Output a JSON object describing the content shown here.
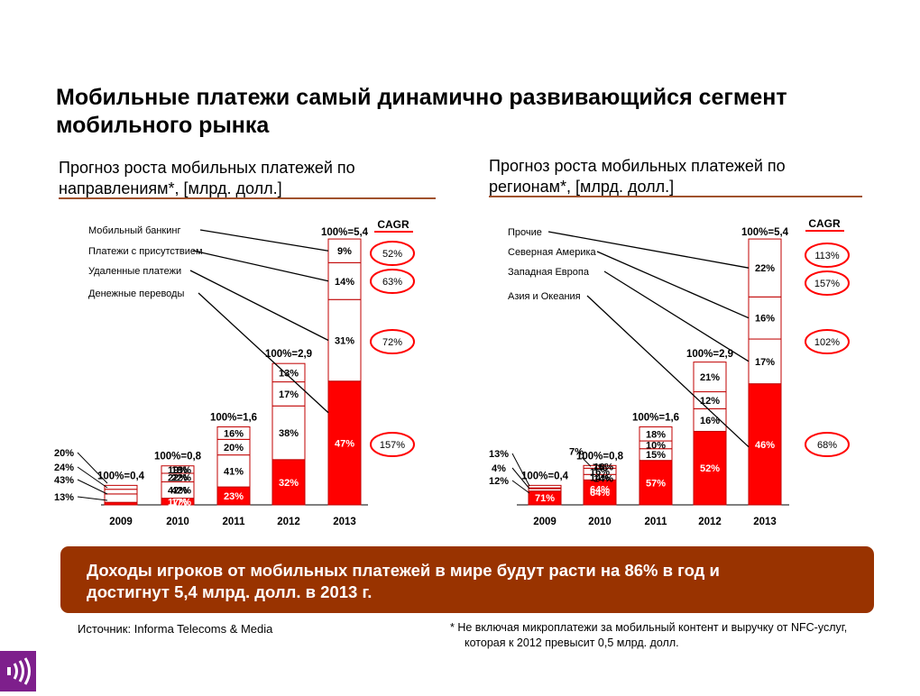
{
  "slide": {
    "title_line1": "Мобильные платежи самый динамично развивающийся сегмент",
    "title_line2": "мобильного рынка",
    "left_subtitle_line1": "Прогноз роста мобильных платежей по",
    "left_subtitle_line2": "направлениям*, [млрд. долл.]",
    "right_subtitle_line1": "Прогноз роста мобильных платежей по",
    "right_subtitle_line2": "регионам*, [млрд. долл.]",
    "banner_line1": "Доходы игроков от мобильных платежей в мире будут расти на 86% в год и",
    "banner_line2": "достигнут 5,4 млрд. долл. в 2013 г.",
    "source": "Источник: Informa Telecoms & Media",
    "footnote_line1": "* Не включая микроплатежи за мобильный контент и выручку от NFC-услуг,",
    "footnote_line2": "которая к 2012 превысит 0,5 млрд. долл.",
    "accent_color": "#ff0000",
    "banner_color": "#993300",
    "rule_color": "#a0522d",
    "logo_color": "#7e1f8c"
  },
  "chart_data": [
    {
      "type": "bar",
      "stacked": "100%",
      "categories": [
        "2009",
        "2010",
        "2011",
        "2012",
        "2013"
      ],
      "totals": [
        0.4,
        0.8,
        1.6,
        2.9,
        5.4
      ],
      "total_labels": [
        "100%=0,4",
        "100%=0,8",
        "100%=1,6",
        "100%=2,9",
        "100%=5,4"
      ],
      "series": [
        {
          "name": "Денежные переводы",
          "values": [
            13,
            17,
            23,
            32,
            47
          ],
          "labels": [
            "13%",
            "17%",
            "23%",
            "32%",
            "47%"
          ],
          "cagr": "157%",
          "color": "#ff0000"
        },
        {
          "name": "Удаленные платежи",
          "values": [
            43,
            42,
            41,
            38,
            31
          ],
          "labels": [
            "43%",
            "42%",
            "41%",
            "38%",
            "31%"
          ],
          "cagr": "72%",
          "color": "#ffffff"
        },
        {
          "name": "Платежи с присутствием",
          "values": [
            24,
            22,
            20,
            17,
            14
          ],
          "labels": [
            "24%",
            "22%",
            "20%",
            "17%",
            "14%"
          ],
          "cagr": "63%",
          "color": "#ffffff"
        },
        {
          "name": "Мобильный банкинг",
          "values": [
            20,
            19,
            16,
            13,
            9
          ],
          "labels": [
            "20%",
            "19%",
            "16%",
            "13%",
            "9%"
          ],
          "cagr": "52%",
          "color": "#ffffff"
        }
      ],
      "cagr_header": "CAGR",
      "legend_placement": "top-left"
    },
    {
      "type": "bar",
      "stacked": "100%",
      "categories": [
        "2009",
        "2010",
        "2011",
        "2012",
        "2013"
      ],
      "totals": [
        0.4,
        0.8,
        1.6,
        2.9,
        5.4
      ],
      "total_labels": [
        "100%=0,4",
        "100%=0,8",
        "100%=1,6",
        "100%=2,9",
        "100%=5,4"
      ],
      "series": [
        {
          "name": "Азия и Океания",
          "values": [
            71,
            64,
            57,
            52,
            46
          ],
          "labels": [
            "71%",
            "64%",
            "57%",
            "52%",
            "46%"
          ],
          "cagr": "68%",
          "color": "#ff0000"
        },
        {
          "name": "Западная Европа",
          "values": [
            12,
            14,
            15,
            16,
            17
          ],
          "labels": [
            "12%",
            "14%",
            "15%",
            "16%",
            "17%"
          ],
          "cagr": "102%",
          "color": "#ffffff"
        },
        {
          "name": "Северная Америка",
          "values": [
            4,
            16,
            10,
            12,
            16
          ],
          "labels": [
            "4%",
            "16%",
            "10%",
            "12%",
            "16%"
          ],
          "cagr": "157%",
          "color": "#ffffff"
        },
        {
          "name": "Прочие",
          "values": [
            13,
            7,
            18,
            21,
            22
          ],
          "labels": [
            "13%",
            "7%",
            "18%",
            "21%",
            "22%"
          ],
          "cagr": "113%",
          "color": "#ffffff"
        }
      ],
      "cagr_header": "CAGR",
      "legend_placement": "top-left"
    }
  ]
}
